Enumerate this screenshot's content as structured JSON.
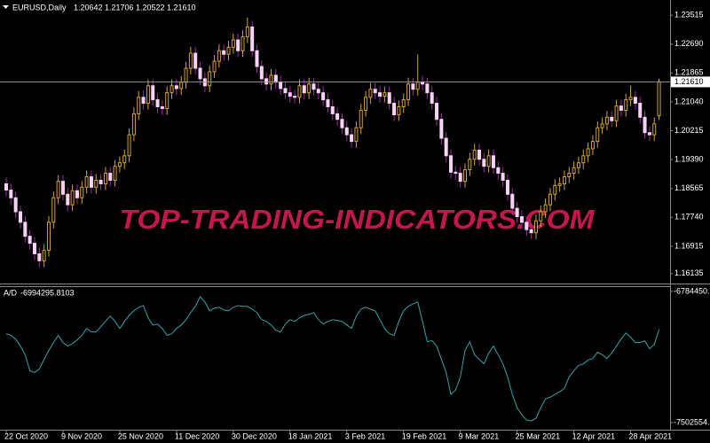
{
  "chart_data": [
    {
      "type": "candlestick",
      "symbol": "EURUSD,Daily",
      "ohlc_labels": [
        "1.20642",
        "1.21706",
        "1.20522",
        "1.21610"
      ],
      "watermark": "TOP-TRADING-INDICATORS.COM",
      "categories": [
        "22 Oct 2020",
        null,
        null,
        null,
        null,
        null,
        null,
        null,
        null,
        null,
        null,
        null,
        "9 Nov 2020",
        null,
        null,
        null,
        null,
        null,
        null,
        null,
        null,
        null,
        null,
        null,
        "25 Nov 2020",
        null,
        null,
        null,
        null,
        null,
        null,
        null,
        null,
        null,
        null,
        null,
        "11 Dec 2020",
        null,
        null,
        null,
        null,
        null,
        null,
        null,
        null,
        null,
        null,
        null,
        "30 Dec 2020",
        null,
        null,
        null,
        null,
        null,
        null,
        null,
        null,
        null,
        null,
        null,
        "18 Jan 2021",
        null,
        null,
        null,
        null,
        null,
        null,
        null,
        null,
        null,
        null,
        null,
        "3 Feb 2021",
        null,
        null,
        null,
        null,
        null,
        null,
        null,
        null,
        null,
        null,
        null,
        "19 Feb 2021",
        null,
        null,
        null,
        null,
        null,
        null,
        null,
        null,
        null,
        null,
        null,
        "9 Mar 2021",
        null,
        null,
        null,
        null,
        null,
        null,
        null,
        null,
        null,
        null,
        null,
        "25 Mar 2021",
        null,
        null,
        null,
        null,
        null,
        null,
        null,
        null,
        null,
        null,
        null,
        "12 Apr 2021",
        null,
        null,
        null,
        null,
        null,
        null,
        null,
        null,
        null,
        null,
        null,
        "28 Apr 2021",
        null,
        null,
        null,
        null,
        null,
        null
      ],
      "values": [
        [
          1.187,
          1.1888,
          1.1834,
          1.1852
        ],
        [
          1.1852,
          1.187,
          1.1812,
          1.183
        ],
        [
          1.183,
          1.1848,
          1.1772,
          1.179
        ],
        [
          1.179,
          1.1808,
          1.1742,
          1.176
        ],
        [
          1.176,
          1.1778,
          1.1702,
          1.172
        ],
        [
          1.172,
          1.1738,
          1.1682,
          1.17
        ],
        [
          1.17,
          1.1718,
          1.1652,
          1.167
        ],
        [
          1.167,
          1.1688,
          1.1632,
          1.165
        ],
        [
          1.165,
          1.1698,
          1.1632,
          1.168
        ],
        [
          1.168,
          1.1778,
          1.1662,
          1.176
        ],
        [
          1.176,
          1.1848,
          1.1742,
          1.183
        ],
        [
          1.183,
          1.1895,
          1.1812,
          1.1877
        ],
        [
          1.1877,
          1.1895,
          1.1822,
          1.184
        ],
        [
          1.184,
          1.1858,
          1.1792,
          1.181
        ],
        [
          1.181,
          1.1868,
          1.1792,
          1.185
        ],
        [
          1.185,
          1.1868,
          1.1812,
          1.183
        ],
        [
          1.183,
          1.1878,
          1.1812,
          1.186
        ],
        [
          1.186,
          1.1908,
          1.1842,
          1.189
        ],
        [
          1.189,
          1.1908,
          1.1842,
          1.186
        ],
        [
          1.186,
          1.1898,
          1.1842,
          1.188
        ],
        [
          1.188,
          1.1898,
          1.1852,
          1.187
        ],
        [
          1.187,
          1.1918,
          1.1852,
          1.19
        ],
        [
          1.19,
          1.1918,
          1.1862,
          1.188
        ],
        [
          1.188,
          1.1938,
          1.1862,
          1.192
        ],
        [
          1.192,
          1.1948,
          1.1902,
          1.193
        ],
        [
          1.193,
          1.1968,
          1.1912,
          1.195
        ],
        [
          1.195,
          1.2028,
          1.1932,
          1.201
        ],
        [
          1.201,
          1.2088,
          1.1992,
          1.207
        ],
        [
          1.207,
          1.2135,
          1.2052,
          1.2117
        ],
        [
          1.2117,
          1.2135,
          1.2082,
          1.21
        ],
        [
          1.21,
          1.2168,
          1.2082,
          1.215
        ],
        [
          1.215,
          1.2168,
          1.2092,
          1.211
        ],
        [
          1.211,
          1.2128,
          1.2072,
          1.209
        ],
        [
          1.209,
          1.2108,
          1.2067,
          1.2085
        ],
        [
          1.2085,
          1.2148,
          1.2067,
          1.213
        ],
        [
          1.213,
          1.2168,
          1.2112,
          1.215
        ],
        [
          1.215,
          1.2168,
          1.2124,
          1.2142
        ],
        [
          1.2142,
          1.2178,
          1.2124,
          1.216
        ],
        [
          1.216,
          1.2218,
          1.2142,
          1.22
        ],
        [
          1.22,
          1.2261,
          1.2182,
          1.2243
        ],
        [
          1.2243,
          1.2261,
          1.2182,
          1.22
        ],
        [
          1.22,
          1.2218,
          1.2152,
          1.217
        ],
        [
          1.217,
          1.2188,
          1.2132,
          1.215
        ],
        [
          1.215,
          1.2208,
          1.2132,
          1.219
        ],
        [
          1.219,
          1.2238,
          1.2172,
          1.222
        ],
        [
          1.222,
          1.2268,
          1.2202,
          1.225
        ],
        [
          1.225,
          1.2268,
          1.2222,
          1.224
        ],
        [
          1.224,
          1.2278,
          1.2222,
          1.226
        ],
        [
          1.226,
          1.2299,
          1.2242,
          1.2281
        ],
        [
          1.2281,
          1.2299,
          1.2232,
          1.225
        ],
        [
          1.225,
          1.2308,
          1.2232,
          1.229
        ],
        [
          1.229,
          1.2345,
          1.2272,
          1.2318
        ],
        [
          1.2318,
          1.2336,
          1.2232,
          1.225
        ],
        [
          1.225,
          1.2268,
          1.2187,
          1.2205
        ],
        [
          1.2205,
          1.2223,
          1.2152,
          1.217
        ],
        [
          1.217,
          1.2188,
          1.2137,
          1.2155
        ],
        [
          1.2155,
          1.2198,
          1.2137,
          1.218
        ],
        [
          1.218,
          1.2198,
          1.2142,
          1.216
        ],
        [
          1.216,
          1.2178,
          1.2124,
          1.2142
        ],
        [
          1.2142,
          1.216,
          1.2112,
          1.213
        ],
        [
          1.213,
          1.2148,
          1.2102,
          1.212
        ],
        [
          1.212,
          1.2138,
          1.2099,
          1.2117
        ],
        [
          1.2117,
          1.2168,
          1.2099,
          1.215
        ],
        [
          1.215,
          1.2168,
          1.2112,
          1.213
        ],
        [
          1.213,
          1.2173,
          1.2112,
          1.2155
        ],
        [
          1.2155,
          1.2173,
          1.2122,
          1.214
        ],
        [
          1.214,
          1.2158,
          1.2112,
          1.213
        ],
        [
          1.213,
          1.2148,
          1.2092,
          1.211
        ],
        [
          1.211,
          1.2128,
          1.2072,
          1.209
        ],
        [
          1.209,
          1.2108,
          1.2052,
          1.207
        ],
        [
          1.207,
          1.2088,
          1.2036,
          1.2054
        ],
        [
          1.2054,
          1.2072,
          1.2012,
          1.203
        ],
        [
          1.203,
          1.2048,
          1.1992,
          1.201
        ],
        [
          1.201,
          1.2028,
          1.1973,
          1.1991
        ],
        [
          1.1991,
          1.2048,
          1.1973,
          1.203
        ],
        [
          1.203,
          1.2098,
          1.2012,
          1.208
        ],
        [
          1.208,
          1.2135,
          1.2062,
          1.2117
        ],
        [
          1.2117,
          1.2158,
          1.2099,
          1.214
        ],
        [
          1.214,
          1.2158,
          1.2112,
          1.213
        ],
        [
          1.213,
          1.2148,
          1.2102,
          1.212
        ],
        [
          1.212,
          1.2148,
          1.2102,
          1.213
        ],
        [
          1.213,
          1.2148,
          1.2082,
          1.21
        ],
        [
          1.21,
          1.2118,
          1.2049,
          1.2067
        ],
        [
          1.2067,
          1.2108,
          1.2049,
          1.209
        ],
        [
          1.209,
          1.2128,
          1.2072,
          1.211
        ],
        [
          1.211,
          1.2173,
          1.2092,
          1.2155
        ],
        [
          1.2155,
          1.2173,
          1.2122,
          1.214
        ],
        [
          1.214,
          1.224,
          1.2122,
          1.216
        ],
        [
          1.216,
          1.2178,
          1.2137,
          1.2155
        ],
        [
          1.2155,
          1.2173,
          1.2112,
          1.213
        ],
        [
          1.213,
          1.2148,
          1.2082,
          1.21
        ],
        [
          1.21,
          1.2118,
          1.2036,
          1.2054
        ],
        [
          1.2054,
          1.2072,
          1.1982,
          1.2
        ],
        [
          1.2,
          1.2018,
          1.1932,
          1.195
        ],
        [
          1.195,
          1.1968,
          1.1885,
          1.1903
        ],
        [
          1.1903,
          1.1921,
          1.1882,
          1.19
        ],
        [
          1.19,
          1.1918,
          1.1859,
          1.1877
        ],
        [
          1.1877,
          1.1928,
          1.1859,
          1.191
        ],
        [
          1.191,
          1.1958,
          1.1892,
          1.194
        ],
        [
          1.194,
          1.1984,
          1.1922,
          1.1966
        ],
        [
          1.1966,
          1.1984,
          1.1922,
          1.194
        ],
        [
          1.194,
          1.1958,
          1.1902,
          1.192
        ],
        [
          1.192,
          1.1968,
          1.1902,
          1.195
        ],
        [
          1.195,
          1.1968,
          1.1898,
          1.1916
        ],
        [
          1.1916,
          1.1934,
          1.1882,
          1.19
        ],
        [
          1.19,
          1.1918,
          1.1862,
          1.188
        ],
        [
          1.188,
          1.1898,
          1.1822,
          1.184
        ],
        [
          1.184,
          1.1858,
          1.1782,
          1.18
        ],
        [
          1.18,
          1.1818,
          1.1758,
          1.1776
        ],
        [
          1.1776,
          1.1794,
          1.1742,
          1.176
        ],
        [
          1.176,
          1.1778,
          1.1721,
          1.1739
        ],
        [
          1.1739,
          1.1757,
          1.1712,
          1.173
        ],
        [
          1.173,
          1.1782,
          1.1712,
          1.1764
        ],
        [
          1.1764,
          1.1808,
          1.1746,
          1.179
        ],
        [
          1.179,
          1.1828,
          1.1772,
          1.181
        ],
        [
          1.181,
          1.1858,
          1.1792,
          1.184
        ],
        [
          1.184,
          1.1883,
          1.1822,
          1.1865
        ],
        [
          1.1865,
          1.1888,
          1.1847,
          1.187
        ],
        [
          1.187,
          1.1908,
          1.1852,
          1.189
        ],
        [
          1.189,
          1.1918,
          1.1872,
          1.19
        ],
        [
          1.19,
          1.1934,
          1.1882,
          1.1916
        ],
        [
          1.1916,
          1.1948,
          1.1898,
          1.193
        ],
        [
          1.193,
          1.1968,
          1.1912,
          1.195
        ],
        [
          1.195,
          1.1988,
          1.1932,
          1.197
        ],
        [
          1.197,
          1.2009,
          1.1952,
          1.1991
        ],
        [
          1.1991,
          1.2048,
          1.1973,
          1.203
        ],
        [
          1.203,
          1.2059,
          1.2012,
          1.2041
        ],
        [
          1.2041,
          1.2078,
          1.2023,
          1.206
        ],
        [
          1.206,
          1.2078,
          1.2032,
          1.205
        ],
        [
          1.205,
          1.211,
          1.2032,
          1.2092
        ],
        [
          1.2092,
          1.211,
          1.2062,
          1.208
        ],
        [
          1.208,
          1.2128,
          1.2062,
          1.211
        ],
        [
          1.211,
          1.215,
          1.2092,
          1.2117
        ],
        [
          1.2117,
          1.2135,
          1.2082,
          1.21
        ],
        [
          1.21,
          1.2118,
          1.2042,
          1.206
        ],
        [
          1.206,
          1.2078,
          1.1998,
          1.2016
        ],
        [
          1.2016,
          1.2034,
          1.1992,
          1.201
        ],
        [
          1.201,
          1.2059,
          1.1992,
          1.2041
        ],
        [
          1.20642,
          1.21706,
          1.20522,
          1.2161
        ]
      ],
      "up_color": "#d4a42a",
      "down_color": "#f7d3f5",
      "down_wick_color": "#a02aa0",
      "ylim": [
        1.1585,
        1.2395
      ],
      "yticks": [
        1.23515,
        {
          "value": 1.2269,
          "label": "1.22690"
        },
        1.21865,
        {
          "value": 1.2104,
          "label": "1.21040"
        },
        1.20215,
        {
          "value": 1.1939,
          "label": "1.19390"
        },
        1.18565,
        {
          "value": 1.1774,
          "label": "1.17740"
        },
        1.16915,
        1.16135
      ],
      "current_price_line": true
    },
    {
      "type": "line",
      "name": "A/D",
      "color": "#2fa4a8",
      "values": [
        -7016000,
        -7025000,
        -7045000,
        -7083000,
        -7131000,
        -7218000,
        -7228000,
        -7209000,
        -7156000,
        -7107000,
        -7064000,
        -7025000,
        -7064000,
        -7083000,
        -7069000,
        -7050000,
        -7025000,
        -6987000,
        -7006000,
        -7006000,
        -6977000,
        -6948000,
        -6919000,
        -6948000,
        -6987000,
        -6948000,
        -6915000,
        -6890000,
        -6871000,
        -6862000,
        -6929000,
        -6968000,
        -6963000,
        -6987000,
        -7025000,
        -7016000,
        -6987000,
        -6968000,
        -6939000,
        -6900000,
        -6866000,
        -6813000,
        -6842000,
        -6890000,
        -6876000,
        -6871000,
        -6886000,
        -6890000,
        -6871000,
        -6862000,
        -6866000,
        -6866000,
        -6881000,
        -6900000,
        -6939000,
        -6948000,
        -6968000,
        -6997000,
        -7006000,
        -6963000,
        -6939000,
        -6948000,
        -6929000,
        -6915000,
        -6910000,
        -6900000,
        -6939000,
        -6963000,
        -6948000,
        -6939000,
        -6943000,
        -6948000,
        -6968000,
        -6987000,
        -6919000,
        -6881000,
        -6871000,
        -6881000,
        -6890000,
        -6939000,
        -6987000,
        -7016000,
        -7025000,
        -6948000,
        -6890000,
        -6866000,
        -6852000,
        -6842000,
        -6948000,
        -7059000,
        -7054000,
        -7083000,
        -7156000,
        -7228000,
        -7348000,
        -7324000,
        -7252000,
        -7107000,
        -7059000,
        -7131000,
        -7156000,
        -7180000,
        -7122000,
        -7083000,
        -7131000,
        -7180000,
        -7252000,
        -7348000,
        -7421000,
        -7459000,
        -7488000,
        -7493000,
        -7478000,
        -7421000,
        -7372000,
        -7363000,
        -7348000,
        -7334000,
        -7315000,
        -7252000,
        -7218000,
        -7189000,
        -7180000,
        -7160000,
        -7151000,
        -7117000,
        -7131000,
        -7151000,
        -7122000,
        -7083000,
        -7045000,
        -7011000,
        -7035000,
        -7064000,
        -7064000,
        -7054000,
        -7098000,
        -7074000,
        -6994295.8103
      ],
      "ylim": [
        -7541000,
        -6755500
      ],
      "yticks": [
        -6784450.7,
        -7502554.8
      ]
    }
  ]
}
